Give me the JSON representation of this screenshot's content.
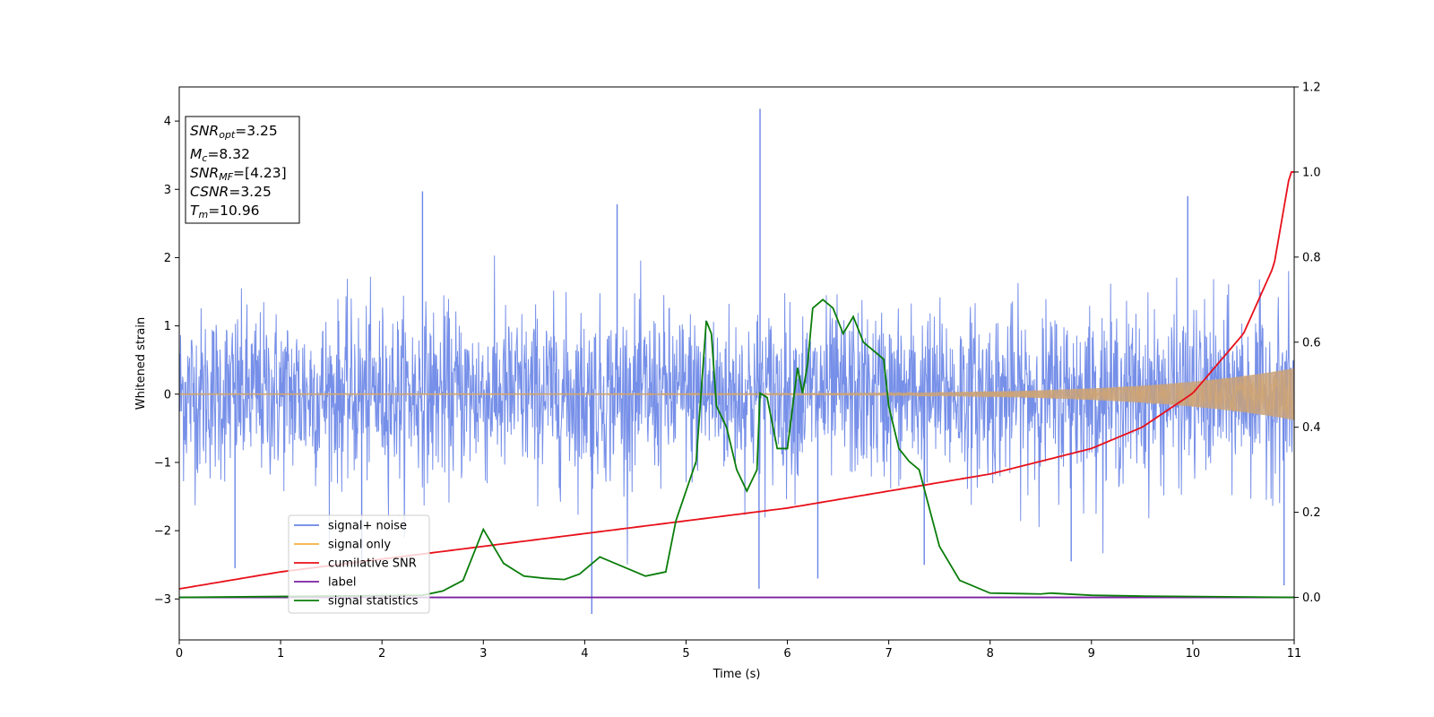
{
  "chart_data": {
    "type": "line",
    "xlabel": "Time (s)",
    "ylabel": "Whitened strain",
    "xlim": [
      0,
      11
    ],
    "ylim_left": [
      -3.6,
      4.5
    ],
    "ylim_right": [
      -0.1,
      1.2
    ],
    "x_ticks": [
      "0",
      "1",
      "2",
      "3",
      "4",
      "5",
      "6",
      "7",
      "8",
      "9",
      "10",
      "11"
    ],
    "y_ticks_left": [
      "−3",
      "−2",
      "−1",
      "0",
      "1",
      "2",
      "3",
      "4"
    ],
    "y_ticks_right": [
      "0.0",
      "0.2",
      "0.4",
      "0.6",
      "0.8",
      "1.0",
      "1.2"
    ],
    "grid": false,
    "legend_position": "lower-left",
    "annotation": {
      "lines": [
        {
          "sym": "SNR",
          "sub": "opt",
          "val": "=3.25"
        },
        {
          "sym": "M",
          "sub": "c",
          "val": "=8.32"
        },
        {
          "sym": "SNR",
          "sub": "MF",
          "val": "=[4.23]"
        },
        {
          "sym": "CSNR",
          "sub": "",
          "val": "=3.25"
        },
        {
          "sym": "T",
          "sub": "m",
          "val": "=10.96"
        }
      ]
    },
    "series": [
      {
        "name": "signal+ noise",
        "axis": "left",
        "color": "#6a85e6",
        "kind": "noise",
        "mean": 0,
        "sigma": 0.62,
        "x_range": [
          0,
          11
        ],
        "observed_min": -3.22,
        "observed_max": 4.18,
        "peaks": [
          [
            5.73,
            4.18
          ],
          [
            2.4,
            2.97
          ],
          [
            4.32,
            2.78
          ],
          [
            9.95,
            2.9
          ],
          [
            4.07,
            -3.22
          ],
          [
            5.72,
            -2.85
          ],
          [
            6.3,
            -2.7
          ],
          [
            7.35,
            -2.5
          ],
          [
            8.8,
            -2.45
          ],
          [
            10.9,
            -2.8
          ],
          [
            0.55,
            -2.55
          ],
          [
            1.8,
            -2.45
          ]
        ]
      },
      {
        "name": "signal only",
        "axis": "left",
        "color": "#f5b041",
        "kind": "chirp",
        "amplitude_start": 0.01,
        "amplitude_end": 0.38,
        "x_range": [
          0,
          11
        ]
      },
      {
        "name": "cumilative SNR",
        "axis": "right",
        "color": "#e8101a",
        "x": [
          0,
          1,
          2,
          3,
          4,
          5,
          6,
          7,
          8,
          9,
          9.5,
          10,
          10.5,
          10.8,
          10.96,
          11
        ],
        "y": [
          0.02,
          0.06,
          0.09,
          0.12,
          0.15,
          0.18,
          0.21,
          0.25,
          0.29,
          0.35,
          0.4,
          0.48,
          0.62,
          0.78,
          1.0,
          1.0
        ]
      },
      {
        "name": "label",
        "axis": "right",
        "color": "#7b1fa2",
        "x": [
          0,
          11
        ],
        "y": [
          0,
          0
        ]
      },
      {
        "name": "signal statistics",
        "axis": "right",
        "color": "#0a7d0a",
        "x": [
          0,
          2.4,
          2.6,
          2.8,
          2.9,
          3.0,
          3.1,
          3.2,
          3.4,
          3.6,
          3.8,
          3.95,
          4.05,
          4.15,
          4.2,
          4.4,
          4.6,
          4.8,
          4.9,
          5.0,
          5.1,
          5.2,
          5.25,
          5.3,
          5.4,
          5.5,
          5.6,
          5.7,
          5.73,
          5.8,
          5.9,
          6.0,
          6.1,
          6.15,
          6.2,
          6.25,
          6.35,
          6.45,
          6.55,
          6.65,
          6.75,
          6.85,
          6.95,
          7.0,
          7.1,
          7.2,
          7.3,
          7.5,
          7.7,
          8.0,
          8.5,
          8.6,
          9.0,
          9.5,
          11
        ],
        "y": [
          0,
          0.005,
          0.015,
          0.04,
          0.1,
          0.16,
          0.12,
          0.08,
          0.05,
          0.045,
          0.042,
          0.055,
          0.075,
          0.095,
          0.09,
          0.07,
          0.05,
          0.06,
          0.18,
          0.25,
          0.32,
          0.65,
          0.62,
          0.45,
          0.4,
          0.3,
          0.25,
          0.3,
          0.48,
          0.47,
          0.35,
          0.35,
          0.54,
          0.48,
          0.55,
          0.68,
          0.7,
          0.68,
          0.62,
          0.66,
          0.6,
          0.58,
          0.56,
          0.45,
          0.35,
          0.32,
          0.3,
          0.12,
          0.04,
          0.01,
          0.008,
          0.01,
          0.005,
          0.003,
          0.0
        ]
      }
    ]
  }
}
